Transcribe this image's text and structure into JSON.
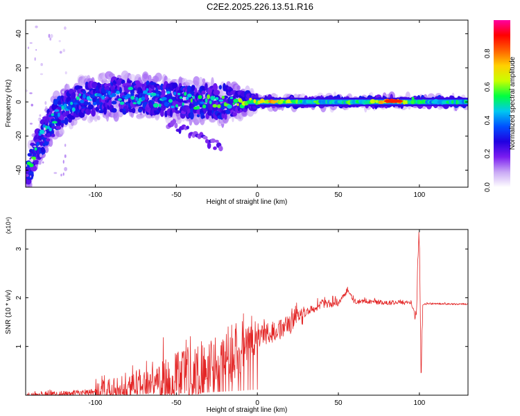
{
  "title": "C2E2.2025.226.13.51.R16",
  "chart_data": [
    {
      "type": "heatmap",
      "xlabel": "Height of straight line (km)",
      "ylabel": "Frequency (Hz)",
      "xlim": [
        -143,
        130
      ],
      "ylim": [
        -50,
        48
      ],
      "x_ticks": [
        -100,
        -50,
        0,
        50,
        100
      ],
      "y_ticks": [
        -40,
        -20,
        0,
        20,
        40
      ],
      "grid": false,
      "colorbar": {
        "label": "Normalized spectral amplitude",
        "range": [
          0,
          1
        ],
        "ticks": [
          0.0,
          0.2,
          0.4,
          0.6,
          0.8
        ],
        "colormap": [
          "#ffffff",
          "#c9a8f5",
          "#7a1cf0",
          "#2000e0",
          "#0050ff",
          "#00c8f0",
          "#00ff40",
          "#c8ff00",
          "#ffd000",
          "#ff6000",
          "#ff0000",
          "#ff00a0"
        ]
      },
      "ridge": [
        {
          "x": -142,
          "f": -46,
          "amp": 0.25
        },
        {
          "x": -140,
          "f": -36,
          "amp": 0.5
        },
        {
          "x": -136,
          "f": -26,
          "amp": 0.45
        },
        {
          "x": -130,
          "f": -16,
          "amp": 0.45
        },
        {
          "x": -124,
          "f": -8,
          "amp": 0.45
        },
        {
          "x": -116,
          "f": -2,
          "amp": 0.45
        },
        {
          "x": -105,
          "f": 2,
          "amp": 0.4
        },
        {
          "x": -90,
          "f": 4,
          "amp": 0.4
        },
        {
          "x": -70,
          "f": 3,
          "amp": 0.4
        },
        {
          "x": -50,
          "f": 1,
          "amp": 0.45
        },
        {
          "x": -30,
          "f": 0,
          "amp": 0.5
        },
        {
          "x": -10,
          "f": 0,
          "amp": 0.55
        },
        {
          "x": 0,
          "f": 0,
          "amp": 0.65
        },
        {
          "x": 10,
          "f": 0,
          "amp": 0.7
        },
        {
          "x": 30,
          "f": 0,
          "amp": 0.5
        },
        {
          "x": 50,
          "f": 0,
          "amp": 0.5
        },
        {
          "x": 70,
          "f": 0,
          "amp": 0.55
        },
        {
          "x": 84,
          "f": 0.5,
          "amp": 0.85
        },
        {
          "x": 95,
          "f": 0,
          "amp": 0.5
        },
        {
          "x": 110,
          "f": 0,
          "amp": 0.45
        },
        {
          "x": 130,
          "f": 0,
          "amp": 0.45
        }
      ]
    },
    {
      "type": "line",
      "xlabel": "Height of straight line (km)",
      "ylabel": "SNR (10 * v/v)",
      "y_multiplier": "(x10⁴)",
      "xlim": [
        -143,
        130
      ],
      "ylim": [
        0,
        3.4
      ],
      "x_ticks": [
        -100,
        -50,
        0,
        50,
        100
      ],
      "y_ticks": [
        1,
        2,
        3
      ],
      "grid": false,
      "color": "#e32626",
      "series": [
        {
          "x": [
            -143,
            -130,
            -120,
            -110,
            -100,
            -90,
            -80,
            -70,
            -60,
            -50,
            -40,
            -30,
            -20,
            -10,
            -5,
            0,
            10,
            20,
            30,
            40,
            50,
            56,
            60,
            70,
            80,
            90,
            95,
            98,
            99,
            100,
            101,
            102,
            105,
            110,
            120,
            130
          ],
          "y": [
            0.0,
            0.02,
            0.04,
            0.06,
            0.08,
            0.12,
            0.18,
            0.25,
            0.32,
            0.4,
            0.5,
            0.62,
            0.8,
            0.95,
            1.1,
            1.2,
            1.3,
            1.45,
            1.7,
            1.88,
            1.9,
            2.15,
            1.92,
            1.92,
            1.9,
            1.9,
            1.9,
            1.6,
            2.7,
            3.4,
            0.25,
            1.85,
            1.88,
            1.88,
            1.87,
            1.87
          ]
        }
      ]
    }
  ]
}
